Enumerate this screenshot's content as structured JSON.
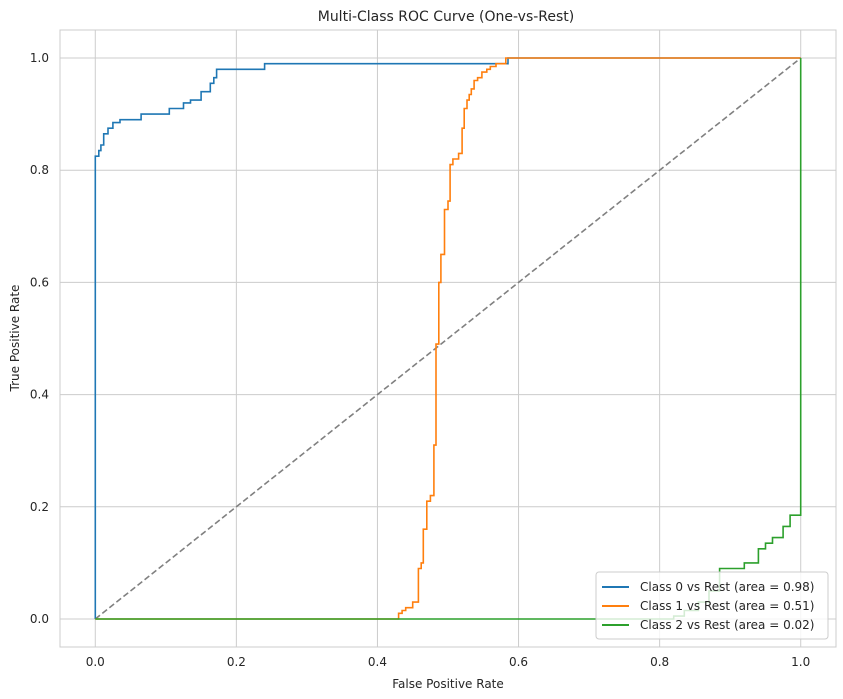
{
  "chart_data": {
    "type": "line",
    "title": "Multi-Class ROC Curve (One-vs-Rest)",
    "xlabel": "False Positive Rate",
    "ylabel": "True Positive Rate",
    "xlim": [
      -0.05,
      1.05
    ],
    "ylim": [
      -0.05,
      1.05
    ],
    "xticks": [
      "0.0",
      "0.2",
      "0.4",
      "0.6",
      "0.8",
      "1.0"
    ],
    "yticks": [
      "0.0",
      "0.2",
      "0.4",
      "0.6",
      "0.8",
      "1.0"
    ],
    "grid": true,
    "legend_position": "lower-right",
    "diagonal": {
      "x": [
        0,
        1
      ],
      "y": [
        0,
        1
      ],
      "color": "#808080",
      "style": "dashed"
    },
    "series": [
      {
        "name": "Class 0 vs Rest (area = 0.98)",
        "color": "#1f77b4",
        "x": [
          0,
          0,
          0.005,
          0.005,
          0.008,
          0.008,
          0.012,
          0.012,
          0.018,
          0.018,
          0.025,
          0.025,
          0.035,
          0.035,
          0.065,
          0.065,
          0.105,
          0.105,
          0.125,
          0.125,
          0.135,
          0.135,
          0.15,
          0.15,
          0.163,
          0.163,
          0.168,
          0.168,
          0.172,
          0.172,
          0.24,
          0.24,
          0.585,
          0.585,
          1.0
        ],
        "y": [
          0,
          0.825,
          0.825,
          0.835,
          0.835,
          0.845,
          0.845,
          0.865,
          0.865,
          0.875,
          0.875,
          0.885,
          0.885,
          0.89,
          0.89,
          0.9,
          0.9,
          0.91,
          0.91,
          0.92,
          0.92,
          0.925,
          0.925,
          0.94,
          0.94,
          0.955,
          0.955,
          0.965,
          0.965,
          0.98,
          0.98,
          0.99,
          0.99,
          1.0,
          1.0
        ]
      },
      {
        "name": "Class 1 vs Rest (area = 0.51)",
        "color": "#ff7f0e",
        "x": [
          0,
          0.43,
          0.43,
          0.435,
          0.435,
          0.44,
          0.44,
          0.45,
          0.45,
          0.458,
          0.458,
          0.462,
          0.462,
          0.465,
          0.465,
          0.47,
          0.47,
          0.475,
          0.475,
          0.48,
          0.48,
          0.483,
          0.483,
          0.487,
          0.487,
          0.49,
          0.49,
          0.495,
          0.495,
          0.5,
          0.5,
          0.503,
          0.503,
          0.507,
          0.507,
          0.515,
          0.515,
          0.52,
          0.52,
          0.523,
          0.523,
          0.527,
          0.527,
          0.53,
          0.53,
          0.533,
          0.533,
          0.537,
          0.537,
          0.542,
          0.542,
          0.548,
          0.548,
          0.555,
          0.555,
          0.56,
          0.56,
          0.568,
          0.568,
          0.582,
          0.582,
          1.0
        ],
        "y": [
          0,
          0,
          0.01,
          0.01,
          0.015,
          0.015,
          0.02,
          0.02,
          0.03,
          0.03,
          0.09,
          0.09,
          0.1,
          0.1,
          0.16,
          0.16,
          0.21,
          0.21,
          0.22,
          0.22,
          0.31,
          0.31,
          0.49,
          0.49,
          0.6,
          0.6,
          0.65,
          0.65,
          0.73,
          0.73,
          0.745,
          0.745,
          0.81,
          0.81,
          0.82,
          0.82,
          0.83,
          0.83,
          0.875,
          0.875,
          0.91,
          0.91,
          0.925,
          0.925,
          0.935,
          0.935,
          0.945,
          0.945,
          0.96,
          0.96,
          0.965,
          0.965,
          0.975,
          0.975,
          0.98,
          0.98,
          0.985,
          0.985,
          0.99,
          0.99,
          1.0,
          1.0
        ]
      },
      {
        "name": "Class 2 vs Rest (area = 0.02)",
        "color": "#2ca02c",
        "x": [
          0,
          0.82,
          0.82,
          0.835,
          0.835,
          0.855,
          0.855,
          0.87,
          0.87,
          0.885,
          0.885,
          0.92,
          0.92,
          0.94,
          0.94,
          0.95,
          0.95,
          0.96,
          0.96,
          0.975,
          0.975,
          0.985,
          0.985,
          1.0,
          1.0
        ],
        "y": [
          0,
          0,
          0.005,
          0.005,
          0.015,
          0.015,
          0.03,
          0.03,
          0.05,
          0.05,
          0.09,
          0.09,
          0.1,
          0.1,
          0.125,
          0.125,
          0.135,
          0.135,
          0.145,
          0.145,
          0.165,
          0.165,
          0.185,
          0.185,
          1.0
        ]
      }
    ]
  }
}
